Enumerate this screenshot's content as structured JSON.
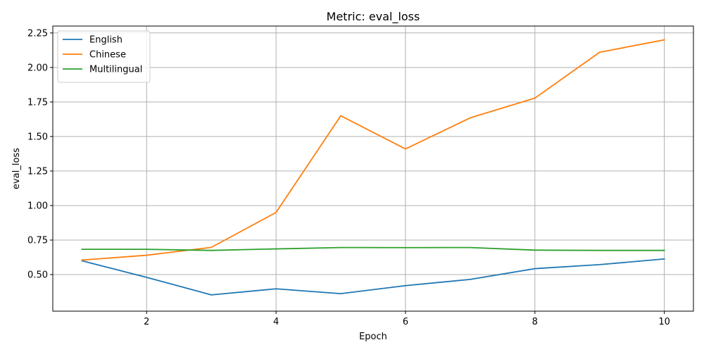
{
  "chart_data": {
    "type": "line",
    "title": "Metric: eval_loss",
    "xlabel": "Epoch",
    "ylabel": "eval_loss",
    "x": [
      1,
      2,
      3,
      4,
      5,
      6,
      7,
      8,
      9,
      10
    ],
    "xlim": [
      0.55,
      10.45
    ],
    "ylim": [
      0.235,
      2.3
    ],
    "xticks": [
      2,
      4,
      6,
      8,
      10
    ],
    "xtick_labels": [
      "2",
      "4",
      "6",
      "8",
      "10"
    ],
    "yticks": [
      0.5,
      0.75,
      1.0,
      1.25,
      1.5,
      1.75,
      2.0,
      2.25
    ],
    "ytick_labels": [
      "0.50",
      "0.75",
      "1.00",
      "1.25",
      "1.50",
      "1.75",
      "2.00",
      "2.25"
    ],
    "grid": true,
    "legend_position": "top-left",
    "series": [
      {
        "name": "English",
        "color": "#1f77b4",
        "values": [
          0.6,
          0.48,
          0.353,
          0.397,
          0.362,
          0.42,
          0.465,
          0.543,
          0.572,
          0.613
        ]
      },
      {
        "name": "Chinese",
        "color": "#ff7f0e",
        "values": [
          0.605,
          0.64,
          0.697,
          0.95,
          1.65,
          1.41,
          1.635,
          1.778,
          2.11,
          2.2
        ]
      },
      {
        "name": "Multilingual",
        "color": "#2ca02c",
        "values": [
          0.683,
          0.683,
          0.675,
          0.686,
          0.696,
          0.695,
          0.696,
          0.677,
          0.675,
          0.675
        ]
      }
    ]
  }
}
